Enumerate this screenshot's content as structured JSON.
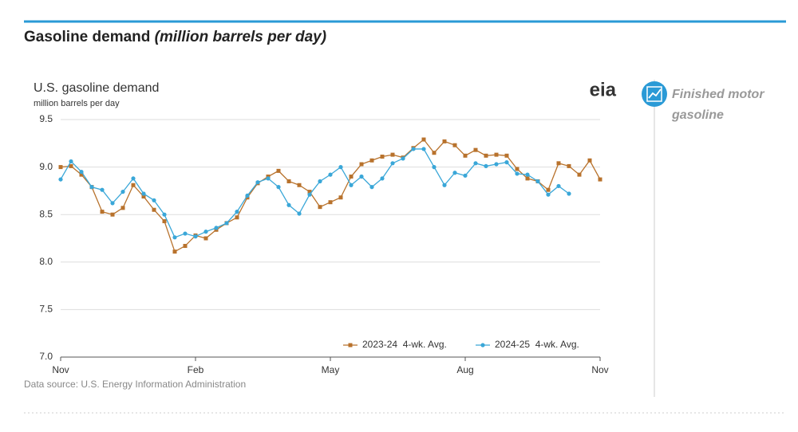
{
  "header": {
    "title": "Gasoline demand",
    "title_italic": "(million barrels per day)"
  },
  "logo": "eia",
  "sidebar": {
    "label_line1": "Finished motor",
    "label_line2": "gasoline"
  },
  "chart_data": {
    "type": "line",
    "title": "U.S. gasoline demand",
    "subtitle": "million barrels per day",
    "source": "Data source: U.S. Energy Information Administration",
    "categories": [
      "Nov",
      null,
      null,
      null,
      null,
      null,
      null,
      null,
      null,
      null,
      null,
      null,
      null,
      "Feb",
      null,
      null,
      null,
      null,
      null,
      null,
      null,
      null,
      null,
      null,
      null,
      null,
      "May",
      null,
      null,
      null,
      null,
      null,
      null,
      null,
      null,
      null,
      null,
      null,
      null,
      "Aug",
      null,
      null,
      null,
      null,
      null,
      null,
      null,
      null,
      null,
      null,
      null,
      null,
      "Nov"
    ],
    "series": [
      {
        "name": "2023-24  4-wk. Avg.",
        "color": "#b8722c",
        "marker": "square",
        "values": [
          9.0,
          9.01,
          8.92,
          8.79,
          8.53,
          8.5,
          8.57,
          8.81,
          8.69,
          8.55,
          8.43,
          8.11,
          8.17,
          8.28,
          8.25,
          8.34,
          8.41,
          8.47,
          8.68,
          8.83,
          8.9,
          8.96,
          8.85,
          8.81,
          8.74,
          8.58,
          8.63,
          8.68,
          8.9,
          9.03,
          9.07,
          9.11,
          9.13,
          9.1,
          9.2,
          9.29,
          9.15,
          9.27,
          9.23,
          9.12,
          9.18,
          9.12,
          9.13,
          9.12,
          8.98,
          8.88,
          8.85,
          8.76,
          9.04,
          9.01,
          8.92,
          9.07,
          8.87
        ]
      },
      {
        "name": "2024-25  4-wk. Avg.",
        "color": "#3aa7d8",
        "marker": "circle",
        "values": [
          8.87,
          9.06,
          8.95,
          8.79,
          8.76,
          8.62,
          8.74,
          8.88,
          8.72,
          8.65,
          8.5,
          8.26,
          8.3,
          8.27,
          8.32,
          8.36,
          8.41,
          8.53,
          8.7,
          8.84,
          8.88,
          8.79,
          8.6,
          8.51,
          8.71,
          8.85,
          8.92,
          9.0,
          8.81,
          8.9,
          8.79,
          8.88,
          9.04,
          9.09,
          9.19,
          9.19,
          9.0,
          8.81,
          8.94,
          8.91,
          9.04,
          9.01,
          9.03,
          9.05,
          8.93,
          8.92,
          8.85,
          8.71,
          8.8,
          8.72,
          null,
          null,
          null
        ]
      }
    ],
    "ylim": [
      7.0,
      9.5
    ],
    "yticks": [
      {
        "value": 7.0,
        "label": "7.0"
      },
      {
        "value": 7.5,
        "label": "7.5"
      },
      {
        "value": 8.0,
        "label": "8.0"
      },
      {
        "value": 8.5,
        "label": "8.5"
      },
      {
        "value": 9.0,
        "label": "9.0"
      },
      {
        "value": 9.5,
        "label": "9.5"
      }
    ],
    "grid": true,
    "legend": "lower right"
  }
}
